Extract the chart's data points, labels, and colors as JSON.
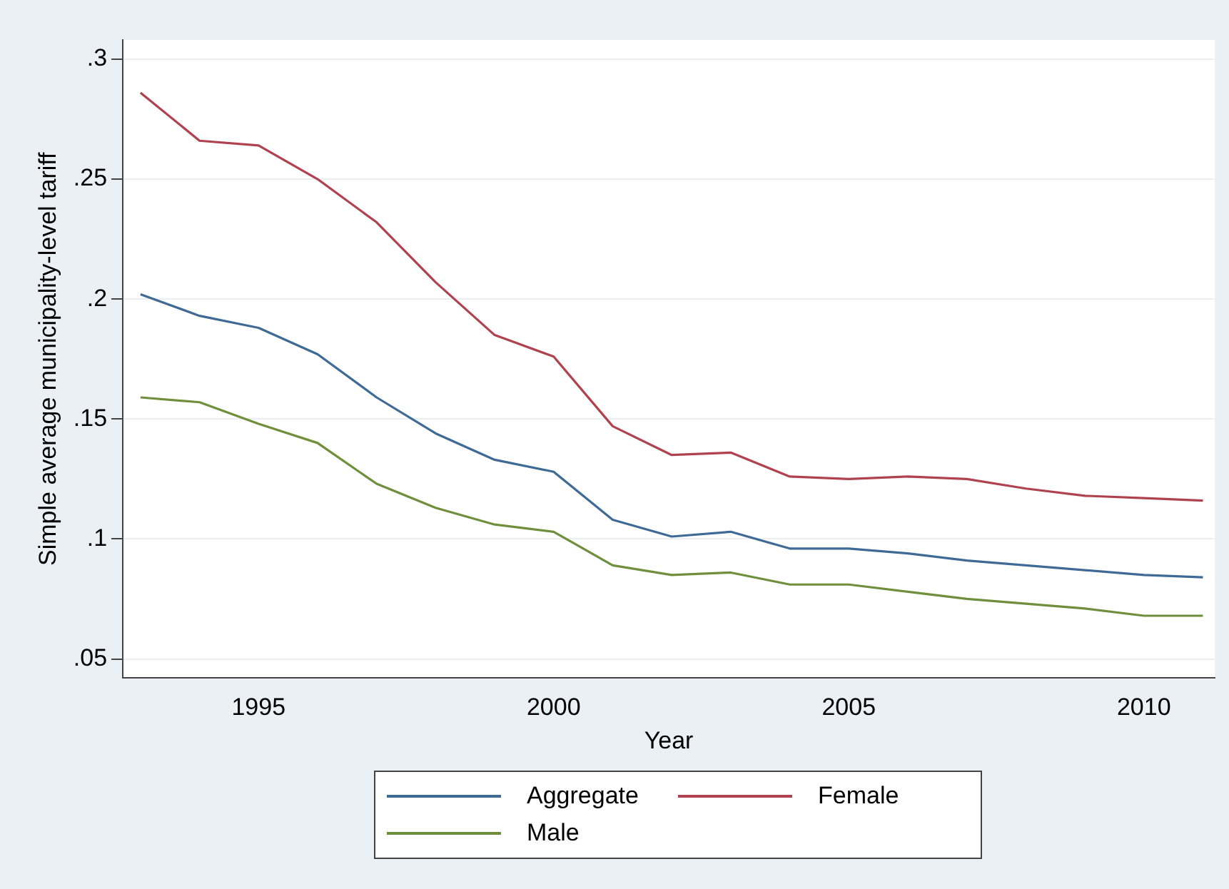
{
  "chart_data": {
    "type": "line",
    "xlabel": "Year",
    "ylabel": "Simple average municipality-level tariff",
    "x": [
      1993,
      1994,
      1995,
      1996,
      1997,
      1998,
      1999,
      2000,
      2001,
      2002,
      2003,
      2004,
      2005,
      2006,
      2007,
      2008,
      2009,
      2010,
      2011
    ],
    "series": [
      {
        "name": "Aggregate",
        "color": "#3f6a96",
        "values": [
          0.202,
          0.193,
          0.188,
          0.177,
          0.159,
          0.144,
          0.133,
          0.128,
          0.108,
          0.101,
          0.103,
          0.096,
          0.096,
          0.094,
          0.091,
          0.089,
          0.087,
          0.085,
          0.084
        ]
      },
      {
        "name": "Female",
        "color": "#b0424f",
        "values": [
          0.286,
          0.266,
          0.264,
          0.25,
          0.232,
          0.207,
          0.185,
          0.176,
          0.147,
          0.135,
          0.136,
          0.126,
          0.125,
          0.126,
          0.125,
          0.121,
          0.118,
          0.117,
          0.116
        ]
      },
      {
        "name": "Male",
        "color": "#6f8f3c",
        "values": [
          0.159,
          0.157,
          0.148,
          0.14,
          0.123,
          0.113,
          0.106,
          0.103,
          0.089,
          0.085,
          0.086,
          0.081,
          0.081,
          0.078,
          0.075,
          0.073,
          0.071,
          0.068,
          0.068
        ]
      }
    ],
    "xlim": [
      1992.7,
      2011.2
    ],
    "xticks": [
      1995,
      2000,
      2005,
      2010
    ],
    "ylim": [
      0.042,
      0.308
    ],
    "yticks": [
      {
        "value": 0.05,
        "label": ".05"
      },
      {
        "value": 0.1,
        "label": ".1"
      },
      {
        "value": 0.15,
        "label": ".15"
      },
      {
        "value": 0.2,
        "label": ".2"
      },
      {
        "value": 0.25,
        "label": ".25"
      },
      {
        "value": 0.3,
        "label": ".3"
      }
    ],
    "grid": "y",
    "legend": "bottom",
    "marker": "none",
    "line_style": "solid"
  }
}
